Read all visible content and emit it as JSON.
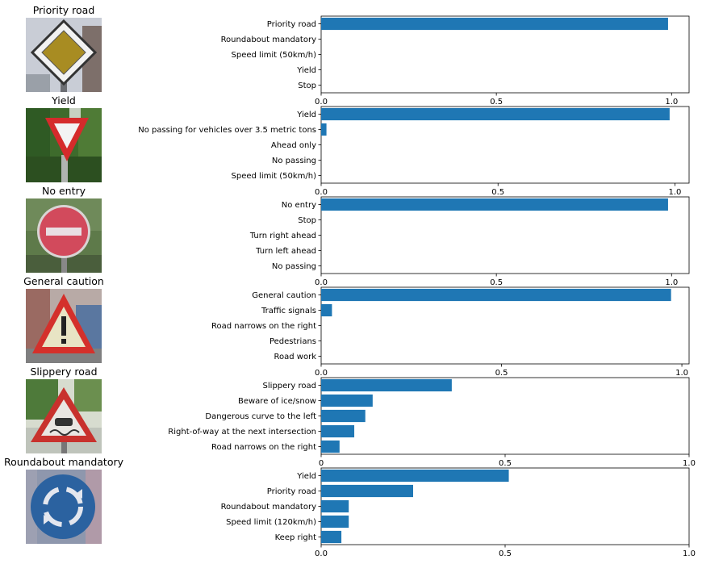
{
  "colors": {
    "bar": "#1f77b4",
    "axis": "#000000"
  },
  "chart_data": [
    {
      "type": "bar",
      "orientation": "horizontal",
      "image_title": "Priority road",
      "categories": [
        "Priority road",
        "Roundabout mandatory",
        "Speed limit (50km/h)",
        "Yield",
        "Stop"
      ],
      "values": [
        0.99,
        0,
        0,
        0,
        0
      ],
      "xlim": [
        0,
        1.05
      ],
      "xticks": [
        "0.0",
        "0.5",
        "1.0"
      ],
      "xtick_values": [
        0,
        0.5,
        1.0
      ],
      "thumb_icon": "priority-road-sign"
    },
    {
      "type": "bar",
      "orientation": "horizontal",
      "image_title": "Yield",
      "categories": [
        "Yield",
        "No passing for vehicles over 3.5 metric tons",
        "Ahead only",
        "No passing",
        "Speed limit (50km/h)"
      ],
      "values": [
        0.985,
        0.015,
        0,
        0,
        0
      ],
      "xlim": [
        0,
        1.04
      ],
      "xticks": [
        "0.0",
        "0.5",
        "1.0"
      ],
      "xtick_values": [
        0,
        0.5,
        1.0
      ],
      "thumb_icon": "yield-sign"
    },
    {
      "type": "bar",
      "orientation": "horizontal",
      "image_title": "No entry",
      "categories": [
        "No entry",
        "Stop",
        "Turn right ahead",
        "Turn left ahead",
        "No passing"
      ],
      "values": [
        0.99,
        0,
        0,
        0,
        0
      ],
      "xlim": [
        0,
        1.05
      ],
      "xticks": [
        "0.0",
        "0.5",
        "1.0"
      ],
      "xtick_values": [
        0,
        0.5,
        1.0
      ],
      "thumb_icon": "no-entry-sign"
    },
    {
      "type": "bar",
      "orientation": "horizontal",
      "image_title": "General caution",
      "categories": [
        "General caution",
        "Traffic signals",
        "Road narrows on the right",
        "Pedestrians",
        "Road work"
      ],
      "values": [
        0.97,
        0.03,
        0,
        0,
        0
      ],
      "xlim": [
        0,
        1.02
      ],
      "xticks": [
        "0.0",
        "0.5",
        "1.0"
      ],
      "xtick_values": [
        0,
        0.5,
        1.0
      ],
      "thumb_icon": "general-caution-sign"
    },
    {
      "type": "bar",
      "orientation": "horizontal",
      "image_title": "Slippery road",
      "categories": [
        "Slippery road",
        "Beware of ice/snow",
        "Dangerous curve to the left",
        "Right-of-way at the next intersection",
        "Road narrows on the right"
      ],
      "values": [
        0.355,
        0.14,
        0.12,
        0.09,
        0.05
      ],
      "xlim": [
        0,
        1.0
      ],
      "xticks": [
        "0",
        "0.5",
        "1.0"
      ],
      "xtick_values": [
        0,
        0.5,
        1.0
      ],
      "thumb_icon": "slippery-road-sign"
    },
    {
      "type": "bar",
      "orientation": "horizontal",
      "image_title": "Roundabout mandatory",
      "categories": [
        "Yield",
        "Priority road",
        "Roundabout mandatory",
        "Speed limit (120km/h)",
        "Keep right"
      ],
      "values": [
        0.51,
        0.25,
        0.075,
        0.075,
        0.055
      ],
      "xlim": [
        0,
        1.0
      ],
      "xticks": [
        "0.0",
        "0.5",
        "1.0"
      ],
      "xtick_values": [
        0,
        0.5,
        1.0
      ],
      "thumb_icon": "roundabout-mandatory-sign"
    }
  ]
}
